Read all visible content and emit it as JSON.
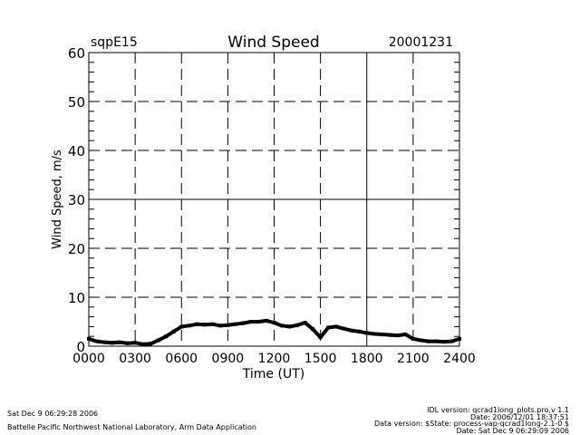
{
  "chart_data": {
    "type": "line",
    "title": "Wind Speed",
    "site_label": "sqpE15",
    "date_label": "20001231",
    "xlabel": "Time (UT)",
    "ylabel": "Wind Speed, m/s",
    "xlim": [
      0,
      24
    ],
    "ylim": [
      0,
      60
    ],
    "x_ticks": [
      0,
      3,
      6,
      9,
      12,
      15,
      18,
      21,
      24
    ],
    "x_tick_labels": [
      "0000",
      "0300",
      "0600",
      "0900",
      "1200",
      "1500",
      "1800",
      "2100",
      "2400"
    ],
    "y_ticks": [
      0,
      10,
      20,
      30,
      40,
      50,
      60
    ],
    "y_tick_labels": [
      "0",
      "10",
      "20",
      "30",
      "40",
      "50",
      "60"
    ],
    "grid": true,
    "series": [
      {
        "name": "Wind Speed",
        "x": [
          0,
          0.5,
          1,
          1.5,
          2,
          2.5,
          3,
          3.5,
          4,
          4.5,
          5,
          5.5,
          6,
          6.5,
          7,
          7.5,
          8,
          8.5,
          9,
          9.5,
          10,
          10.5,
          11,
          11.5,
          12,
          12.5,
          13,
          13.5,
          14,
          14.5,
          15,
          15.5,
          16,
          16.5,
          17,
          17.5,
          18,
          18.5,
          19,
          19.5,
          20,
          20.5,
          21,
          21.5,
          22,
          22.5,
          23,
          23.5,
          24
        ],
        "values": [
          1.5,
          1,
          0.8,
          0.7,
          0.8,
          0.6,
          0.7,
          0.4,
          0.5,
          1.2,
          2,
          3,
          4,
          4.2,
          4.5,
          4.4,
          4.5,
          4.2,
          4.3,
          4.5,
          4.7,
          5,
          5,
          5.2,
          4.8,
          4.2,
          4,
          4.3,
          4.8,
          3.5,
          1.8,
          3.8,
          4,
          3.6,
          3.2,
          3,
          2.7,
          2.5,
          2.4,
          2.3,
          2.2,
          2.4,
          1.5,
          1.2,
          1,
          1,
          0.9,
          1,
          1.5
        ]
      }
    ]
  },
  "footer": {
    "left_timestamp": "Sat Dec  9 06:29:28 2006",
    "left_org": "Battelle Pacific Northwest National Laboratory, Arm Data Application",
    "right_lines": [
      "IDL version: qcrad1long_plots.pro,v 1.1",
      "Date: 2006/12/01 18:37:51",
      "Data version: $State: process-vap-qcrad1long-2.1-0 $",
      "Date: Sat Dec  9 06:29:09 2006"
    ]
  }
}
